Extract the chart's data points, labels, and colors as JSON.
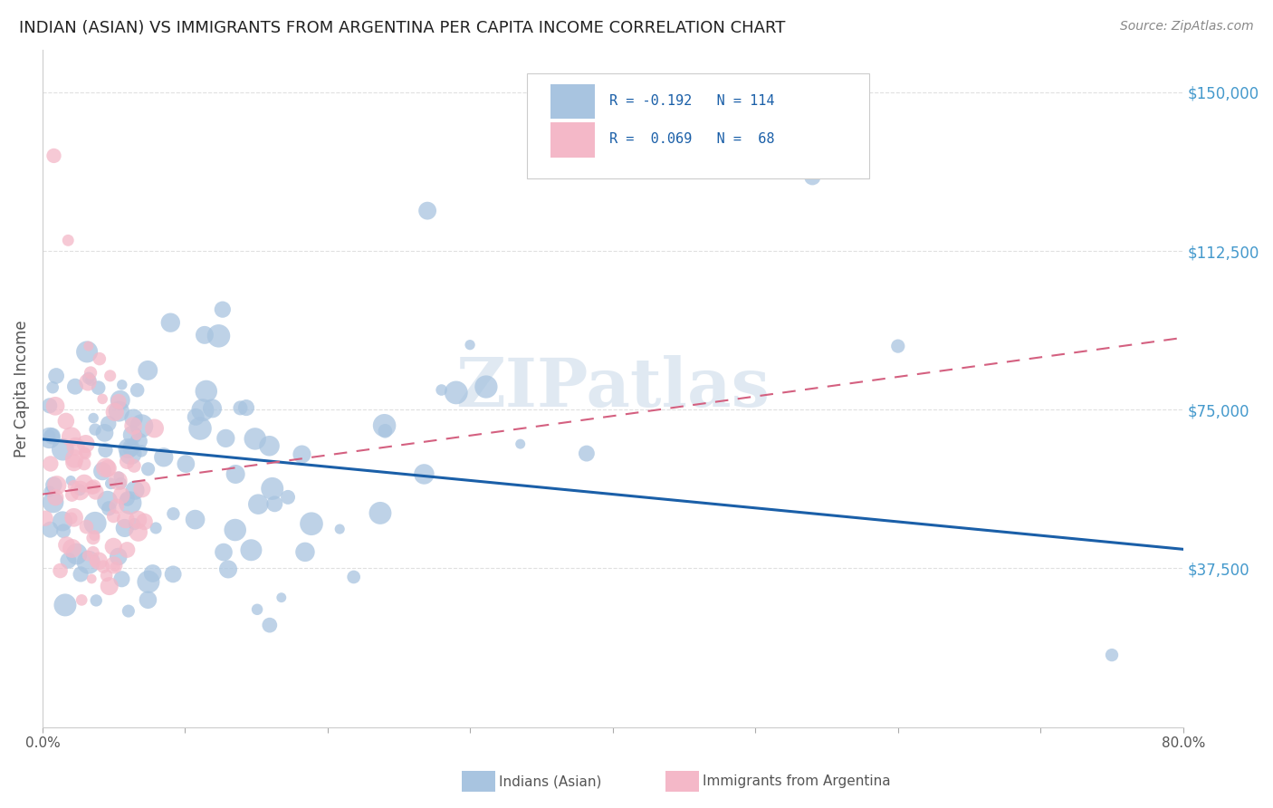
{
  "title": "INDIAN (ASIAN) VS IMMIGRANTS FROM ARGENTINA PER CAPITA INCOME CORRELATION CHART",
  "source": "Source: ZipAtlas.com",
  "ylabel": "Per Capita Income",
  "xlabel": "",
  "xlim": [
    0,
    0.8
  ],
  "ylim": [
    0,
    160000
  ],
  "yticks": [
    37500,
    75000,
    112500,
    150000
  ],
  "ytick_labels": [
    "$37,500",
    "$75,000",
    "$112,500",
    "$150,000"
  ],
  "xticks": [
    0.0,
    0.1,
    0.2,
    0.3,
    0.4,
    0.5,
    0.6,
    0.7,
    0.8
  ],
  "xtick_labels": [
    "0.0%",
    "",
    "",
    "",
    "",
    "",
    "",
    "",
    "80.0%"
  ],
  "r_indian": -0.192,
  "n_indian": 114,
  "r_argentina": 0.069,
  "n_argentina": 68,
  "color_indian": "#a8c4e0",
  "color_argentina": "#f4b8c8",
  "line_color_indian": "#1a5fa8",
  "line_color_argentina": "#d46080",
  "watermark": "ZIPatlas",
  "background_color": "#ffffff",
  "title_fontsize": 13,
  "tick_color": "#4499cc",
  "grid_color": "#e0e0e0",
  "indian_line_y0": 68000,
  "indian_line_y1": 42000,
  "argentina_line_y0": 55000,
  "argentina_line_y1": 92000
}
